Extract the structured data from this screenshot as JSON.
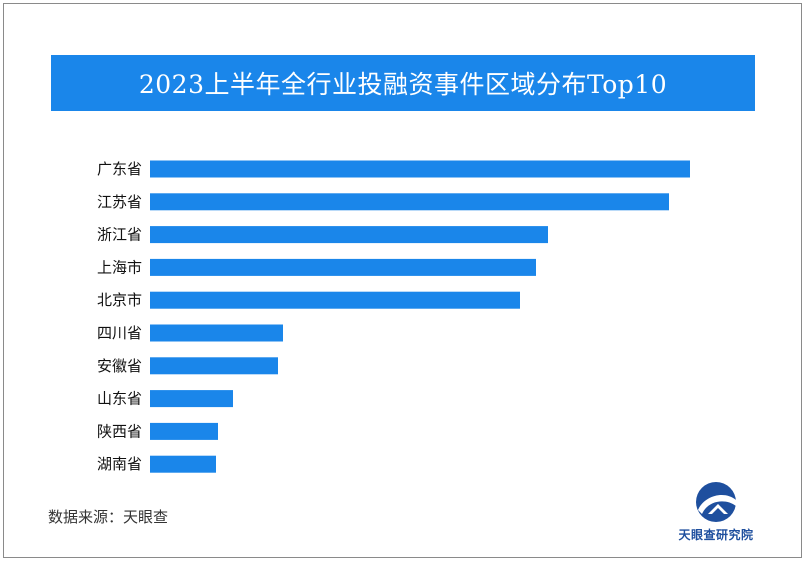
{
  "chart_data": {
    "type": "bar",
    "orientation": "horizontal",
    "title": "2023上半年全行业投融资事件区域分布Top10",
    "categories": [
      "广东省",
      "江苏省",
      "浙江省",
      "上海市",
      "北京市",
      "四川省",
      "安徽省",
      "山东省",
      "陕西省",
      "湖南省"
    ],
    "values": [
      540,
      519,
      398,
      386,
      370,
      133,
      128,
      83,
      68,
      66
    ],
    "bar_color": "#1a86ea",
    "title_bar_color": "#1a86ea",
    "grid": false,
    "legend": "none"
  },
  "footer": {
    "source": "数据来源：天眼查"
  },
  "logo": {
    "name": "天眼查研究院",
    "icon": "tianyancha-logo-icon"
  }
}
